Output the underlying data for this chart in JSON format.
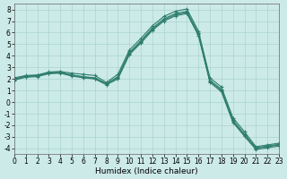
{
  "xlabel": "Humidex (Indice chaleur)",
  "xlim": [
    0,
    23
  ],
  "ylim": [
    -4.5,
    8.5
  ],
  "xticks": [
    0,
    1,
    2,
    3,
    4,
    5,
    6,
    7,
    8,
    9,
    10,
    11,
    12,
    13,
    14,
    15,
    16,
    17,
    18,
    19,
    20,
    21,
    22,
    23
  ],
  "yticks": [
    -4,
    -3,
    -2,
    -1,
    0,
    1,
    2,
    3,
    4,
    5,
    6,
    7,
    8
  ],
  "background_color": "#cceae8",
  "grid_color": "#aad4d2",
  "line_color": "#2e7d6e",
  "lines": [
    {
      "x": [
        0,
        1,
        2,
        3,
        4,
        5,
        6,
        7,
        8,
        9,
        10,
        11,
        12,
        13,
        14,
        15,
        16,
        17,
        18,
        19,
        20,
        21,
        22,
        23
      ],
      "y": [
        2.1,
        2.3,
        2.35,
        2.6,
        2.65,
        2.5,
        2.4,
        2.3,
        1.7,
        2.4,
        4.5,
        5.5,
        6.6,
        7.4,
        7.85,
        8.05,
        6.15,
        2.1,
        1.3,
        -1.35,
        -2.55,
        -3.85,
        -3.7,
        -3.55
      ]
    },
    {
      "x": [
        0,
        1,
        2,
        3,
        4,
        5,
        6,
        7,
        8,
        9,
        10,
        11,
        12,
        13,
        14,
        15,
        16,
        17,
        18,
        19,
        20,
        21,
        22,
        23
      ],
      "y": [
        2.0,
        2.25,
        2.3,
        2.55,
        2.6,
        2.35,
        2.2,
        2.1,
        1.6,
        2.2,
        4.3,
        5.3,
        6.4,
        7.2,
        7.65,
        7.85,
        5.95,
        1.9,
        1.1,
        -1.55,
        -2.75,
        -3.95,
        -3.8,
        -3.65
      ]
    },
    {
      "x": [
        0,
        1,
        2,
        3,
        4,
        5,
        6,
        7,
        8,
        9,
        10,
        11,
        12,
        13,
        14,
        15,
        16,
        17,
        18,
        19,
        20,
        21,
        22,
        23
      ],
      "y": [
        1.95,
        2.2,
        2.25,
        2.5,
        2.55,
        2.3,
        2.15,
        2.05,
        1.55,
        2.1,
        4.2,
        5.2,
        6.3,
        7.1,
        7.55,
        7.75,
        5.85,
        1.8,
        1.0,
        -1.65,
        -2.85,
        -4.0,
        -3.85,
        -3.7
      ]
    },
    {
      "x": [
        0,
        1,
        2,
        3,
        4,
        5,
        6,
        7,
        8,
        9,
        10,
        11,
        12,
        13,
        14,
        15,
        16,
        17,
        18,
        19,
        20,
        21,
        22,
        23
      ],
      "y": [
        1.9,
        2.15,
        2.2,
        2.45,
        2.5,
        2.25,
        2.1,
        2.0,
        1.5,
        2.0,
        4.1,
        5.1,
        6.2,
        7.0,
        7.45,
        7.65,
        5.75,
        1.7,
        0.9,
        -1.75,
        -2.95,
        -4.1,
        -3.95,
        -3.8
      ]
    }
  ],
  "marker": "+",
  "markersize": 3,
  "linewidth": 0.8,
  "tick_fontsize": 5.5,
  "xlabel_fontsize": 6.5
}
